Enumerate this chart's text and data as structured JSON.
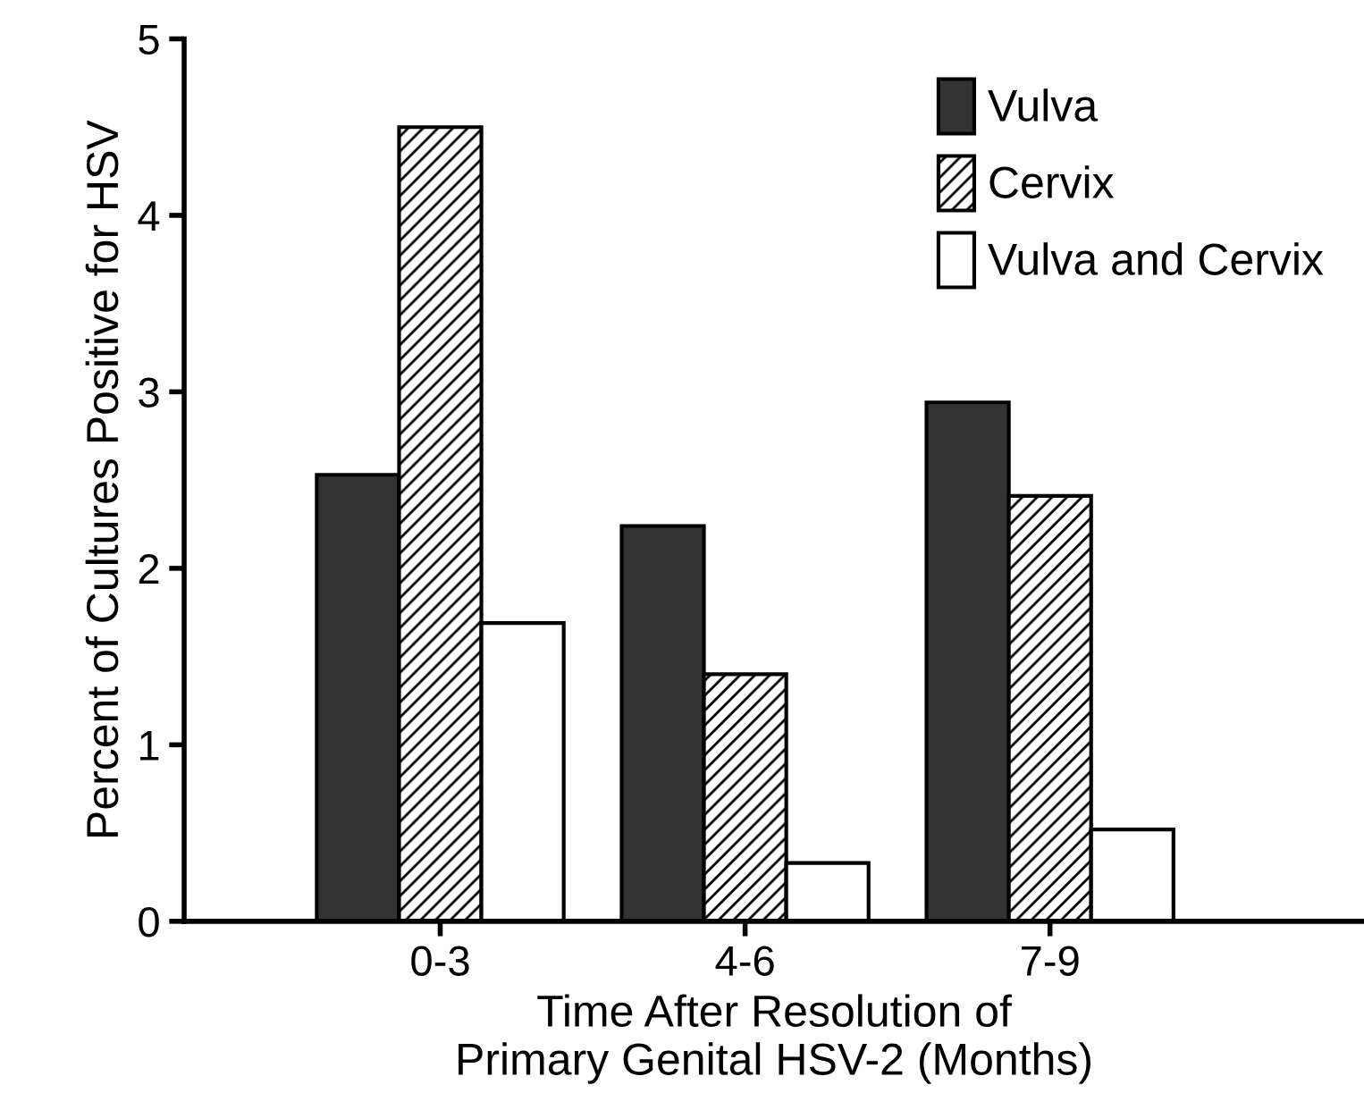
{
  "chart_data": {
    "type": "bar",
    "xlabel": "Time After Resolution of\nPrimary Genital HSV-2 (Months)",
    "ylabel": "Percent of Cultures Positive for HSV",
    "categories": [
      "0-3",
      "4-6",
      "7-9"
    ],
    "series": [
      {
        "name": "Vulva",
        "color": "#333333",
        "values": [
          2.53,
          2.24,
          2.94
        ]
      },
      {
        "name": "Cervix",
        "color": "#000000",
        "values": [
          4.5,
          1.4,
          2.41
        ]
      },
      {
        "name": "Vulva and Cervix",
        "color": "#ffffff",
        "values": [
          1.69,
          0.33,
          0.52
        ]
      }
    ],
    "ylim": [
      0,
      5
    ],
    "yticks": [
      0,
      1,
      2,
      3,
      4,
      5
    ],
    "grid": false,
    "legend": "top right"
  }
}
